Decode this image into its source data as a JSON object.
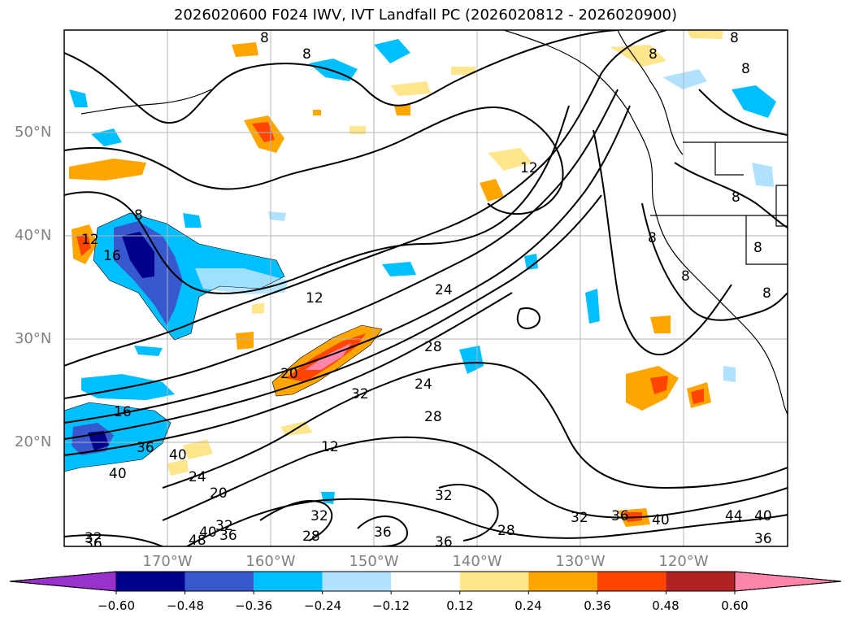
{
  "title": "2026020600 F024 IWV, IVT Landfall PC (2026020812 - 2026020900)",
  "latitude_labels": [
    "50°N",
    "40°N",
    "30°N",
    "20°N"
  ],
  "longitude_labels": [
    "170°W",
    "160°W",
    "150°W",
    "140°W",
    "130°W",
    "120°W"
  ],
  "colorbar": {
    "tick_labels": [
      "−0.60",
      "−0.48",
      "−0.36",
      "−0.24",
      "−0.12",
      "0.12",
      "0.24",
      "0.36",
      "0.48",
      "0.60"
    ],
    "colors": [
      "#9932cc",
      "#00008b",
      "#3858cf",
      "#00bfff",
      "#b0e2ff",
      "#ffffff",
      "#ffe68c",
      "#ffa500",
      "#ff4500",
      "#b22222",
      "#ff85aa"
    ]
  },
  "contour_labels": [
    "8",
    "12",
    "16",
    "20",
    "24",
    "28",
    "32",
    "36",
    "40",
    "44",
    "48"
  ],
  "colors": {
    "contour": "#000000",
    "grid": "#b4b4b4",
    "coastline": "#000000",
    "axis_labels": "#808080"
  }
}
